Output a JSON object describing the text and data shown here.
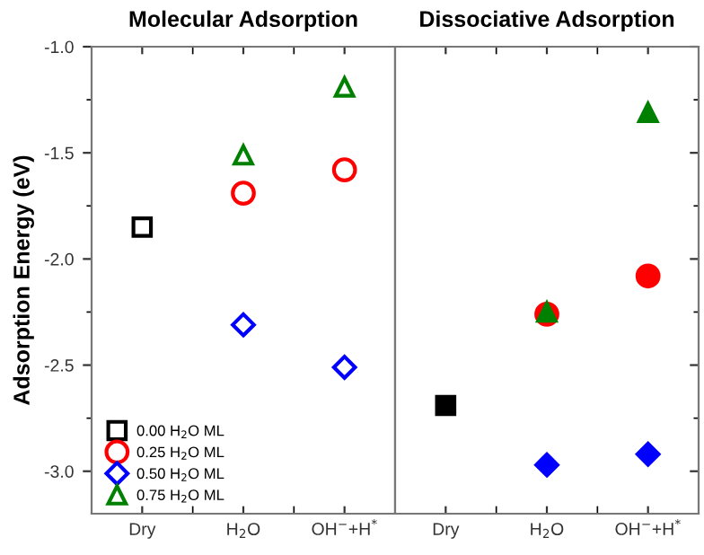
{
  "chart_data": [
    {
      "type": "scatter",
      "title": "Molecular Adsorption",
      "ylabel": "Adsorption Energy (eV)",
      "categories": [
        "Dry",
        "H$_{2}$O",
        "OH$^{−}$+H$^{*}$"
      ],
      "ylim": [
        -3.2,
        -1.0
      ],
      "yticks": [
        {
          "value": -3,
          "label": "-3.0"
        },
        -2.5,
        {
          "value": -2,
          "label": "-2.0"
        },
        -1.5,
        {
          "value": -1,
          "label": "-1.0"
        }
      ],
      "grid": false,
      "legend": "bottom left",
      "series": [
        {
          "name": "0.00 H$_{2}$O ML",
          "color": "#000000",
          "marker": "square",
          "values": [
            -1.85,
            null,
            null
          ]
        },
        {
          "name": "0.25 H$_{2}$O ML",
          "color": "#ff0000",
          "marker": "circle",
          "values": [
            null,
            -1.69,
            -1.58
          ]
        },
        {
          "name": "0.50 H$_{2}$O ML",
          "color": "#0000ff",
          "marker": "diamond",
          "values": [
            null,
            -2.31,
            -2.51
          ]
        },
        {
          "name": "0.75 H$_{2}$O ML",
          "color": "#008000",
          "marker": "triangle",
          "values": [
            null,
            -1.51,
            -1.19
          ]
        }
      ]
    },
    {
      "type": "scatter",
      "title": "Dissociative Adsorption",
      "categories": [
        "Dry",
        "H$_{2}$O",
        "OH$^{−}$+H$^{*}$"
      ],
      "ylim": [
        -3.2,
        -1.0
      ],
      "yticks": [
        {
          "value": -3,
          "label": null
        },
        {
          "value": -2.5,
          "label": null
        },
        {
          "value": -2,
          "label": null
        },
        {
          "value": -1.5,
          "label": null
        },
        {
          "value": -1,
          "label": null
        }
      ],
      "tick_labels": "x",
      "grid": false,
      "series": [
        {
          "color": "#000000",
          "marker": "square",
          "values": [
            -2.69,
            null,
            null
          ]
        },
        {
          "color": "#ff0000",
          "marker": "circle",
          "values": [
            null,
            -2.26,
            -2.08
          ]
        },
        {
          "color": "#0000ff",
          "marker": "diamond",
          "values": [
            null,
            -2.97,
            -2.92
          ]
        },
        {
          "color": "#008000",
          "marker": "triangle",
          "values": [
            null,
            -2.25,
            -1.31
          ]
        }
      ]
    }
  ]
}
